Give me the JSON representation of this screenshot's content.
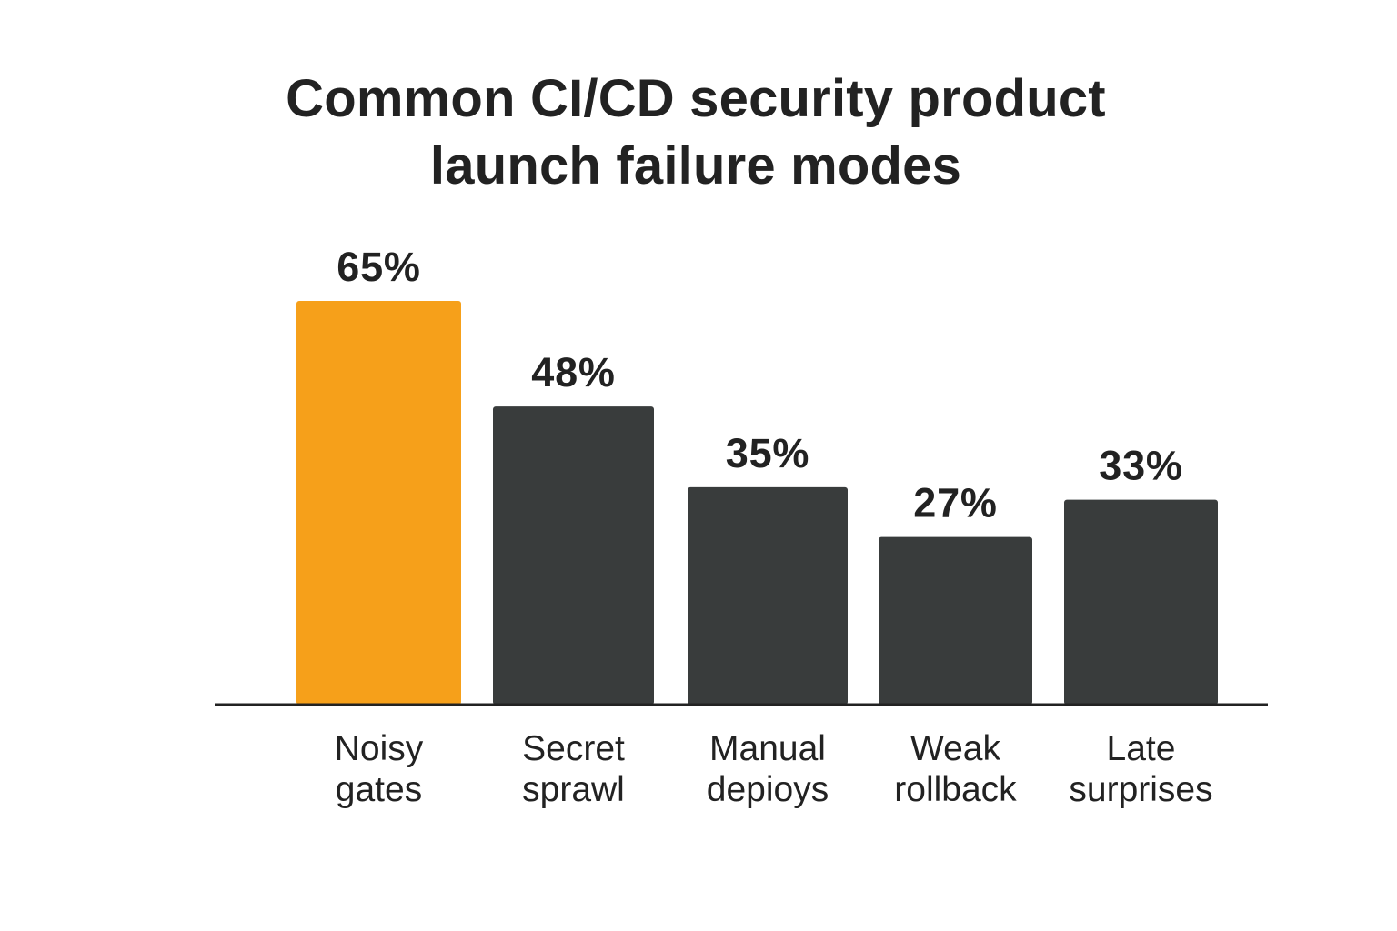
{
  "chart_data": {
    "type": "bar",
    "title_lines": [
      "Common CI/CD security product",
      "launch failure modes"
    ],
    "categories": [
      [
        "Noisy",
        "gates"
      ],
      [
        "Secret",
        "sprawl"
      ],
      [
        "Manual",
        "depioys"
      ],
      [
        "Weak",
        "rollback"
      ],
      [
        "Late",
        "surprises"
      ]
    ],
    "values": [
      65,
      48,
      35,
      27,
      33
    ],
    "value_labels": [
      "65%",
      "48%",
      "35%",
      "27%",
      "33%"
    ],
    "highlight_index": 0,
    "ylim": [
      0,
      100
    ],
    "grid": false,
    "legend": "none",
    "colors": {
      "highlight": "#F6A01A",
      "bar": "#393C3C",
      "axis": "#222222",
      "text": "#222222"
    }
  }
}
